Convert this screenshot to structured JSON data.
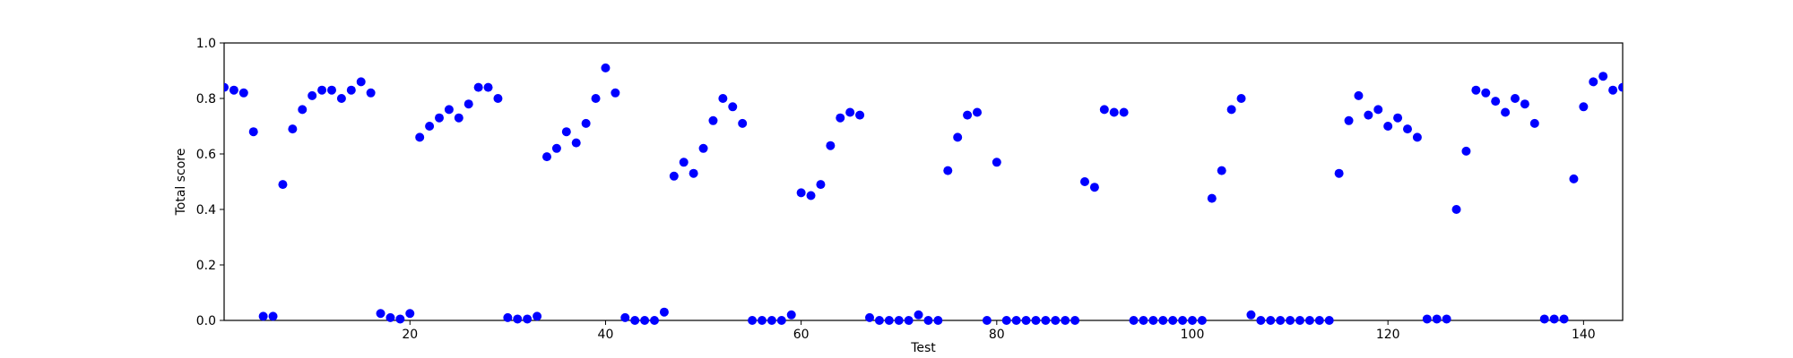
{
  "chart_data": {
    "type": "scatter",
    "xlabel": "Test",
    "ylabel": "Total score",
    "xlim": [
      1,
      144
    ],
    "ylim": [
      0.0,
      1.0
    ],
    "xticks": [
      20,
      40,
      60,
      80,
      100,
      120,
      140
    ],
    "yticks": [
      0.0,
      0.2,
      0.4,
      0.6,
      0.8,
      1.0
    ],
    "xtick_labels": [
      "20",
      "40",
      "60",
      "80",
      "100",
      "120",
      "140"
    ],
    "ytick_labels": [
      "0.0",
      "0.2",
      "0.4",
      "0.6",
      "0.8",
      "1.0"
    ],
    "grid": false,
    "marker_color": "#0000ff",
    "series": [
      {
        "x": [
          1,
          2,
          3,
          4,
          5,
          6,
          7,
          8,
          9,
          10,
          11,
          12,
          13,
          14,
          15,
          16,
          17,
          18,
          19,
          20,
          21,
          22,
          23,
          24,
          25,
          26,
          27,
          28,
          29,
          30,
          31,
          32,
          33,
          34,
          35,
          36,
          37,
          38,
          39,
          40,
          41,
          42,
          43,
          44,
          45,
          46,
          47,
          48,
          49,
          50,
          51,
          52,
          53,
          54,
          55,
          56,
          57,
          58,
          59,
          60,
          61,
          62,
          63,
          64,
          65,
          66,
          67,
          68,
          69,
          70,
          71,
          72,
          73,
          74,
          75,
          76,
          77,
          78,
          79,
          80,
          81,
          82,
          83,
          84,
          85,
          86,
          87,
          88,
          89,
          90,
          91,
          92,
          93,
          94,
          95,
          96,
          97,
          98,
          99,
          100,
          101,
          102,
          103,
          104,
          105,
          106,
          107,
          108,
          109,
          110,
          111,
          112,
          113,
          114,
          115,
          116,
          117,
          118,
          119,
          120,
          121,
          122,
          123,
          124,
          125,
          126,
          127,
          128,
          129,
          130,
          131,
          132,
          133,
          134,
          135,
          136,
          137,
          138,
          139,
          140,
          141,
          142,
          143,
          144
        ],
        "y": [
          0.84,
          0.83,
          0.82,
          0.68,
          0.015,
          0.015,
          0.49,
          0.69,
          0.76,
          0.81,
          0.83,
          0.83,
          0.8,
          0.83,
          0.86,
          0.82,
          0.025,
          0.01,
          0.005,
          0.025,
          0.66,
          0.7,
          0.73,
          0.76,
          0.73,
          0.78,
          0.84,
          0.84,
          0.8,
          0.01,
          0.005,
          0.005,
          0.015,
          0.59,
          0.62,
          0.68,
          0.64,
          0.71,
          0.8,
          0.91,
          0.82,
          0.01,
          0.0,
          0.0,
          0.0,
          0.03,
          0.52,
          0.57,
          0.53,
          0.62,
          0.72,
          0.8,
          0.77,
          0.71,
          0.0,
          0.0,
          0.0,
          0.0,
          0.02,
          0.46,
          0.45,
          0.49,
          0.63,
          0.73,
          0.75,
          0.74,
          0.01,
          0.0,
          0.0,
          0.0,
          0.0,
          0.02,
          0.0,
          0.0,
          0.54,
          0.66,
          0.74,
          0.75,
          0.0,
          0.57,
          0.0,
          0.0,
          0.0,
          0.0,
          0.0,
          0.0,
          0.0,
          0.0,
          0.5,
          0.48,
          0.76,
          0.75,
          0.75,
          0.0,
          0.0,
          0.0,
          0.0,
          0.0,
          0.0,
          0.0,
          0.0,
          0.44,
          0.54,
          0.76,
          0.8,
          0.02,
          0.0,
          0.0,
          0.0,
          0.0,
          0.0,
          0.0,
          0.0,
          0.0,
          0.53,
          0.72,
          0.81,
          0.74,
          0.76,
          0.7,
          0.73,
          0.69,
          0.66,
          0.005,
          0.005,
          0.005,
          0.4,
          0.61,
          0.83,
          0.82,
          0.79,
          0.75,
          0.8,
          0.78,
          0.71,
          0.005,
          0.005,
          0.005,
          0.51,
          0.77,
          0.86,
          0.88,
          0.83,
          0.84
        ]
      }
    ]
  }
}
